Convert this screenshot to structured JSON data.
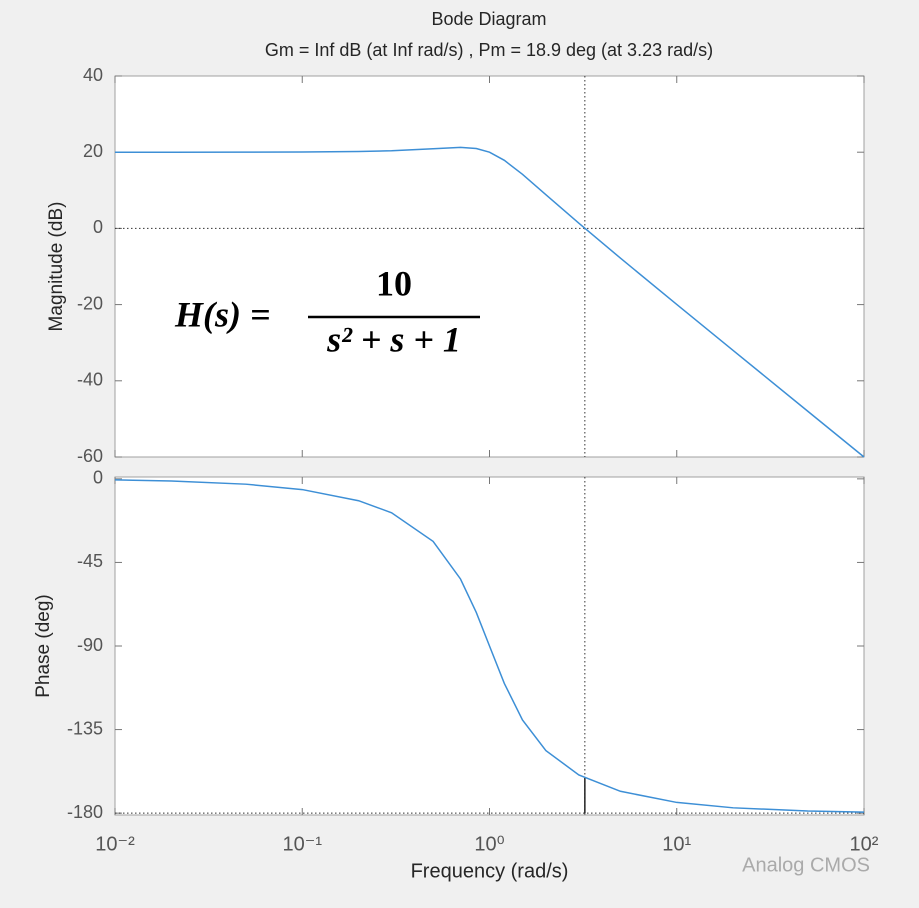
{
  "chart_data": [
    {
      "type": "line",
      "title": "Bode Diagram",
      "subtitle": "Gm = Inf dB (at Inf rad/s) ,  Pm = 18.9 deg (at 3.23 rad/s)",
      "y_label": "Magnitude (dB)",
      "log_x": true,
      "xlim": [
        0.01,
        100
      ],
      "xticks": [
        0.01,
        0.1,
        1,
        10,
        100
      ],
      "ylim": [
        -60,
        40
      ],
      "yticks": [
        40,
        20,
        0,
        -20,
        -40,
        -60
      ],
      "hline": 0,
      "vline": 3.23,
      "annotation": {
        "lhs": "H(s) =",
        "numerator": "10",
        "denominator": "s² + s + 1"
      },
      "x": [
        0.01,
        0.02,
        0.05,
        0.1,
        0.2,
        0.3,
        0.5,
        0.7,
        0.85,
        1,
        1.2,
        1.5,
        2,
        3,
        5,
        10,
        20,
        50,
        100
      ],
      "series": [
        {
          "name": "H(s)",
          "color": "#3d8fd6",
          "values": [
            20.0,
            20.0,
            20.01,
            20.04,
            20.17,
            20.37,
            20.9,
            21.25,
            20.97,
            20.0,
            17.87,
            14.19,
            8.86,
            1.37,
            -7.79,
            -19.96,
            -32.03,
            -47.96,
            -60.0
          ]
        }
      ]
    },
    {
      "type": "line",
      "y_label": "Phase (deg)",
      "x_label": "Frequency  (rad/s)",
      "log_x": true,
      "xlim": [
        0.01,
        100
      ],
      "xticks": [
        {
          "value": 0.01,
          "label": "10⁻²"
        },
        {
          "value": 0.1,
          "label": "10⁻¹"
        },
        {
          "value": 1,
          "label": "10⁰"
        },
        {
          "value": 10,
          "label": "10¹"
        },
        {
          "value": 100,
          "label": "10²"
        }
      ],
      "ylim": [
        -181,
        1
      ],
      "yticks": [
        0,
        -45,
        -90,
        -135,
        -180
      ],
      "hline": -180,
      "vline": 3.23,
      "margin_phase": -161.1,
      "x": [
        0.01,
        0.02,
        0.05,
        0.1,
        0.2,
        0.3,
        0.5,
        0.7,
        0.85,
        1,
        1.2,
        1.5,
        2,
        3,
        5,
        10,
        20,
        50,
        100
      ],
      "series": [
        {
          "name": "H(s)",
          "color": "#3d8fd6",
          "values": [
            -0.57,
            -1.15,
            -2.87,
            -5.77,
            -11.77,
            -18.25,
            -33.69,
            -53.92,
            -71.92,
            -90,
            -110.14,
            -129.81,
            -146.31,
            -159.44,
            -168.23,
            -174.23,
            -177.13,
            -178.85,
            -179.43
          ]
        }
      ]
    }
  ],
  "watermark": "Analog CMOS"
}
